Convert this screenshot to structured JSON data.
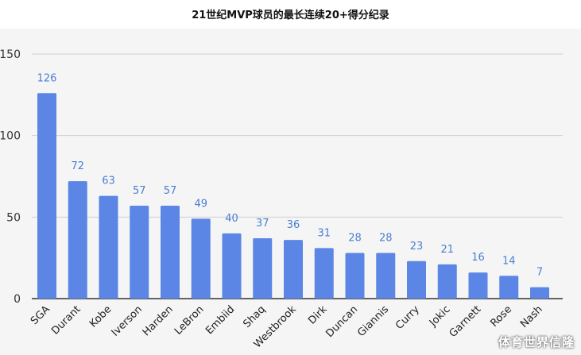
{
  "title": "21世纪MVP球员的最长连续20+得分纪录",
  "watermark": "体育世界信隆",
  "colors": {
    "bar": "#5b86e5",
    "label": "#4a7fd1",
    "grid": "#cfcfcf",
    "axis": "#333333",
    "background": "#f5f5f5"
  },
  "chart_data": {
    "type": "bar",
    "title": "21世纪MVP球员的最长连续20+得分纪录",
    "xlabel": "",
    "ylabel": "",
    "ylim": [
      0,
      150
    ],
    "yticks": [
      0,
      50,
      100,
      150
    ],
    "grid": true,
    "categories": [
      "SGA",
      "Durant",
      "Kobe",
      "Iverson",
      "Harden",
      "LeBron",
      "Embiid",
      "Shaq",
      "Westbrook",
      "Dirk",
      "Duncan",
      "Giannis",
      "Curry",
      "Jokic",
      "Garnett",
      "Rose",
      "Nash"
    ],
    "values": [
      126,
      72,
      63,
      57,
      57,
      49,
      40,
      37,
      36,
      31,
      28,
      28,
      23,
      21,
      16,
      14,
      7
    ]
  }
}
